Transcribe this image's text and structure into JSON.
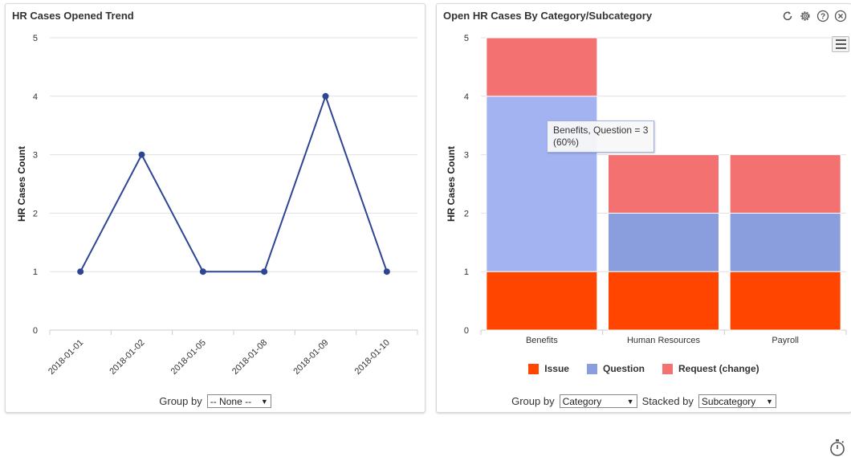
{
  "left_widget": {
    "title": "HR Cases Opened Trend",
    "group_by_label": "Group by",
    "group_by_value": "-- None --"
  },
  "right_widget": {
    "title": "Open HR Cases By Category/Subcategory",
    "group_by_label": "Group by",
    "group_by_value": "Category",
    "stacked_by_label": "Stacked by",
    "stacked_by_value": "Subcategory",
    "icons": [
      "refresh-icon",
      "gear-icon",
      "help-icon",
      "close-icon"
    ],
    "tooltip_line1": "Benefits, Question = 3",
    "tooltip_line2": "(60%)"
  },
  "chart_data": [
    {
      "type": "line",
      "title": "HR Cases Opened Trend",
      "xlabel": "",
      "ylabel": "HR Cases Count",
      "ylim": [
        0,
        5
      ],
      "yticks": [
        0,
        1,
        2,
        3,
        4,
        5
      ],
      "categories": [
        "2018-01-01",
        "2018-01-02",
        "2018-01-05",
        "2018-01-08",
        "2018-01-09",
        "2018-01-10"
      ],
      "values": [
        1,
        3,
        1,
        1,
        4,
        1
      ],
      "color": "#2e4593",
      "grid": true
    },
    {
      "type": "bar",
      "stacked": true,
      "title": "Open HR Cases By Category/Subcategory",
      "xlabel": "",
      "ylabel": "HR Cases Count",
      "ylim": [
        0,
        5
      ],
      "yticks": [
        0,
        1,
        2,
        3,
        4,
        5
      ],
      "categories": [
        "Benefits",
        "Human Resources",
        "Payroll"
      ],
      "series": [
        {
          "name": "Issue",
          "color": "#ff4500",
          "values": [
            1,
            1,
            1
          ]
        },
        {
          "name": "Question",
          "color": "#8a9ede",
          "values": [
            3,
            1,
            1
          ]
        },
        {
          "name": "Request (change)",
          "color": "#f47171",
          "values": [
            1,
            1,
            1
          ]
        }
      ],
      "highlight": {
        "category": "Benefits",
        "series": "Question",
        "color": "#a3b3f2"
      },
      "legend": "bottom",
      "grid": true
    }
  ]
}
